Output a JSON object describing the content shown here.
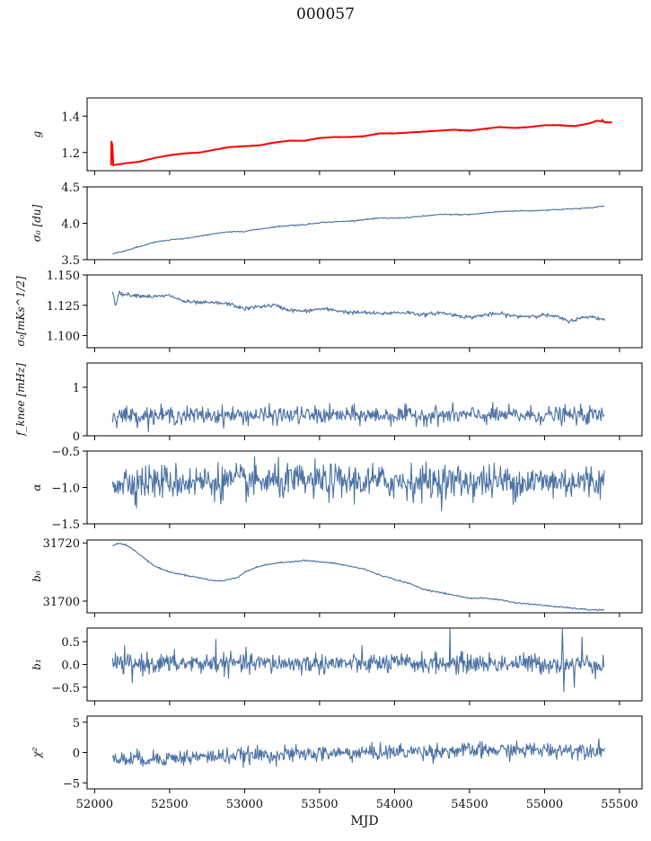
{
  "figure": {
    "title": "000057",
    "xlabel": "MJD",
    "xlim": [
      51950,
      55650
    ],
    "xticks": [
      52000,
      52500,
      53000,
      53500,
      54000,
      54500,
      55000,
      55500
    ],
    "series_color": "#4c72a4",
    "fit_color": "#ff0000"
  },
  "chart_data": [
    {
      "type": "line",
      "ylabel": "g",
      "ylim": [
        1.1,
        1.5
      ],
      "yticks": [
        1.2,
        1.4
      ],
      "decimals": 1,
      "series": [
        {
          "name": "",
          "x": [
            52110,
            52200,
            52300,
            52400,
            52500,
            52600,
            52700,
            52800,
            52900,
            53000,
            53100,
            53200,
            53300,
            53400,
            53500,
            53600,
            53700,
            53800,
            53900,
            54000,
            54100,
            54200,
            54300,
            54400,
            54500,
            54600,
            54700,
            54800,
            54900,
            55000,
            55100,
            55200,
            55300,
            55350,
            55400,
            55450
          ],
          "y": [
            1.13,
            1.14,
            1.15,
            1.17,
            1.185,
            1.195,
            1.2,
            1.215,
            1.23,
            1.235,
            1.24,
            1.255,
            1.265,
            1.265,
            1.28,
            1.285,
            1.285,
            1.29,
            1.305,
            1.305,
            1.31,
            1.315,
            1.32,
            1.325,
            1.32,
            1.33,
            1.34,
            1.335,
            1.34,
            1.35,
            1.35,
            1.345,
            1.36,
            1.375,
            1.37,
            1.365
          ],
          "noise": 0.002,
          "color": "#4c72a4"
        },
        {
          "name": "",
          "x": [
            52110,
            52112,
            52118,
            52125,
            52200,
            52300,
            52400,
            52500,
            52600,
            52700,
            52800,
            52900,
            53000,
            53100,
            53200,
            53300,
            53400,
            53500,
            53600,
            53700,
            53800,
            53900,
            54000,
            54100,
            54200,
            54300,
            54400,
            54500,
            54600,
            54700,
            54800,
            54900,
            55000,
            55100,
            55200,
            55300,
            55350,
            55380,
            55385,
            55400,
            55450
          ],
          "y": [
            1.13,
            1.26,
            1.24,
            1.13,
            1.14,
            1.15,
            1.17,
            1.185,
            1.195,
            1.2,
            1.215,
            1.23,
            1.235,
            1.24,
            1.255,
            1.265,
            1.265,
            1.28,
            1.285,
            1.285,
            1.29,
            1.305,
            1.305,
            1.31,
            1.315,
            1.32,
            1.325,
            1.32,
            1.33,
            1.34,
            1.335,
            1.34,
            1.35,
            1.35,
            1.345,
            1.36,
            1.375,
            1.37,
            1.38,
            1.365,
            1.365
          ],
          "noise": 0,
          "color": "#ff0000",
          "width": 2
        }
      ]
    },
    {
      "type": "line",
      "ylabel": "σ₀ [du]",
      "ylim": [
        3.5,
        4.5
      ],
      "yticks": [
        3.5,
        4.0,
        4.5
      ],
      "decimals": 1,
      "series": [
        {
          "name": "",
          "x": [
            52120,
            52200,
            52300,
            52400,
            52500,
            52600,
            52700,
            52800,
            52900,
            53000,
            53100,
            53200,
            53300,
            53400,
            53500,
            53600,
            53700,
            53800,
            53900,
            54000,
            54100,
            54200,
            54300,
            54400,
            54500,
            54600,
            54700,
            54800,
            54900,
            55000,
            55100,
            55200,
            55300,
            55400
          ],
          "y": [
            3.58,
            3.62,
            3.68,
            3.74,
            3.77,
            3.79,
            3.82,
            3.86,
            3.88,
            3.89,
            3.92,
            3.95,
            3.97,
            3.98,
            4.01,
            4.02,
            4.03,
            4.05,
            4.07,
            4.07,
            4.08,
            4.1,
            4.12,
            4.12,
            4.12,
            4.14,
            4.16,
            4.17,
            4.17,
            4.18,
            4.19,
            4.2,
            4.21,
            4.24
          ],
          "noise": 0.004,
          "color": "#4c72a4"
        }
      ]
    },
    {
      "type": "line",
      "ylabel": "σ₀[mKs^1/2]",
      "ylim": [
        1.09,
        1.15
      ],
      "yticks": [
        1.1,
        1.125,
        1.15
      ],
      "decimals": 3,
      "series": [
        {
          "name": "",
          "x": [
            52120,
            52140,
            52160,
            52200,
            52300,
            52400,
            52500,
            52600,
            52700,
            52800,
            52900,
            53000,
            53100,
            53200,
            53300,
            53400,
            53500,
            53600,
            53700,
            53800,
            53900,
            54000,
            54100,
            54200,
            54300,
            54400,
            54500,
            54600,
            54700,
            54800,
            54900,
            55000,
            55100,
            55150,
            55200,
            55300,
            55400
          ],
          "y": [
            1.136,
            1.125,
            1.135,
            1.134,
            1.133,
            1.132,
            1.133,
            1.128,
            1.127,
            1.127,
            1.126,
            1.122,
            1.124,
            1.125,
            1.121,
            1.12,
            1.122,
            1.121,
            1.119,
            1.119,
            1.118,
            1.119,
            1.119,
            1.117,
            1.119,
            1.117,
            1.115,
            1.117,
            1.118,
            1.116,
            1.116,
            1.117,
            1.115,
            1.112,
            1.113,
            1.116,
            1.113
          ],
          "noise": 0.0008,
          "color": "#4c72a4"
        }
      ]
    },
    {
      "type": "line",
      "ylabel": "f_knee [mHz]",
      "ylim": [
        0,
        1.5
      ],
      "yticks": [
        0,
        1
      ],
      "decimals": 0,
      "series": [
        {
          "name": "",
          "x": [
            52120,
            55400
          ],
          "y": [
            0.42,
            0.42
          ],
          "noise": 0.09,
          "color": "#4c72a4"
        }
      ]
    },
    {
      "type": "line",
      "ylabel": "α",
      "ylim": [
        -1.5,
        -0.5
      ],
      "yticks": [
        -1.5,
        -1.0,
        -0.5
      ],
      "decimals": 1,
      "series": [
        {
          "name": "",
          "x": [
            52120,
            55400
          ],
          "y": [
            -0.92,
            -0.92
          ],
          "noise": 0.12,
          "color": "#4c72a4"
        }
      ]
    },
    {
      "type": "line",
      "ylabel": "b₀",
      "ylim": [
        31696,
        31721
      ],
      "yticks": [
        31700,
        31720
      ],
      "decimals": 0,
      "series": [
        {
          "name": "",
          "x": [
            52120,
            52160,
            52200,
            52250,
            52300,
            52400,
            52500,
            52600,
            52700,
            52800,
            52850,
            52900,
            52950,
            53000,
            53100,
            53200,
            53300,
            53400,
            53500,
            53600,
            53700,
            53800,
            53900,
            54000,
            54100,
            54200,
            54300,
            54400,
            54500,
            54600,
            54700,
            54800,
            54900,
            55000,
            55100,
            55200,
            55300,
            55400
          ],
          "y": [
            31719,
            31720,
            31719.5,
            31718,
            31716,
            31712,
            31710,
            31709,
            31708,
            31707,
            31707,
            31707.5,
            31708,
            31710,
            31712,
            31713,
            31713.5,
            31714,
            31713.5,
            31713,
            31712,
            31711,
            31709,
            31707.5,
            31706,
            31704,
            31703,
            31702,
            31701,
            31701,
            31700.5,
            31699.5,
            31699,
            31698.5,
            31698,
            31697.5,
            31697,
            31697
          ],
          "noise": 0.12,
          "color": "#4c72a4"
        }
      ]
    },
    {
      "type": "line",
      "ylabel": "b₁",
      "ylim": [
        -0.8,
        0.8
      ],
      "yticks": [
        -0.5,
        0.0,
        0.5
      ],
      "decimals": 1,
      "series": [
        {
          "name": "",
          "x": [
            52120,
            55400
          ],
          "y": [
            0.02,
            0.02
          ],
          "noise": 0.11,
          "color": "#4c72a4",
          "spikes": [
            [
              52810,
              0.55
            ],
            [
              54370,
              0.78
            ],
            [
              55120,
              0.8
            ],
            [
              55130,
              -0.6
            ],
            [
              55250,
              0.6
            ],
            [
              55200,
              -0.5
            ],
            [
              52250,
              -0.4
            ]
          ]
        }
      ]
    },
    {
      "type": "line",
      "ylabel": "χ²",
      "ylim": [
        -6,
        6
      ],
      "yticks": [
        -5,
        0,
        5
      ],
      "decimals": 0,
      "series": [
        {
          "name": "",
          "x": [
            52120,
            52500,
            53000,
            53500,
            54000,
            54500,
            55000,
            55400
          ],
          "y": [
            -1.2,
            -0.9,
            -0.5,
            -0.2,
            0.1,
            0.3,
            0.4,
            0.5
          ],
          "noise": 0.65,
          "color": "#4c72a4"
        }
      ]
    }
  ]
}
